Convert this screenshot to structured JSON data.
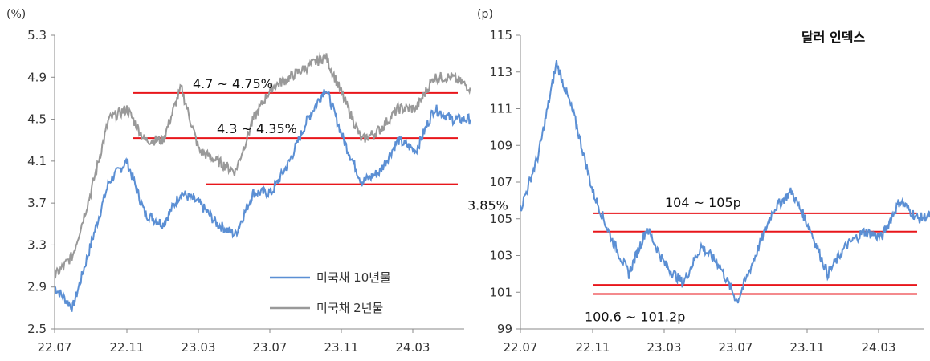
{
  "chart_data": [
    {
      "type": "line",
      "title": "",
      "unit_label": "(%)",
      "xlabel": "",
      "ylabel": "",
      "ylim": [
        2.5,
        5.3
      ],
      "yticks": [
        "5.3",
        "4.9",
        "4.5",
        "4.1",
        "3.7",
        "3.3",
        "2.9",
        "2.5"
      ],
      "xticks": [
        "22.07",
        "22.11",
        "23.03",
        "23.07",
        "23.11",
        "24.03"
      ],
      "grid": false,
      "legend_position": "bottom-right",
      "colors": {
        "us10y": "#5b8fd4",
        "us2y": "#999999",
        "ref": "#e8161b"
      },
      "series": [
        {
          "name": "미국채 10년물",
          "key": "us10y",
          "x": [
            "22.07",
            "22.08",
            "22.09",
            "22.10",
            "22.11",
            "22.12",
            "23.01",
            "23.02",
            "23.03",
            "23.04",
            "23.05",
            "23.06",
            "23.07",
            "23.08",
            "23.09",
            "23.10",
            "23.11",
            "23.12",
            "24.01",
            "24.02",
            "24.03",
            "24.04",
            "24.05",
            "24.06"
          ],
          "values": [
            2.9,
            2.7,
            3.3,
            3.9,
            4.1,
            3.6,
            3.5,
            3.8,
            3.7,
            3.5,
            3.4,
            3.8,
            3.8,
            4.1,
            4.5,
            4.8,
            4.3,
            3.9,
            4.0,
            4.3,
            4.2,
            4.6,
            4.5,
            4.5
          ]
        },
        {
          "name": "미국채 2년물",
          "key": "us2y",
          "x": [
            "22.07",
            "22.08",
            "22.09",
            "22.10",
            "22.11",
            "22.12",
            "23.01",
            "23.02",
            "23.03",
            "23.04",
            "23.05",
            "23.06",
            "23.07",
            "23.08",
            "23.09",
            "23.10",
            "23.11",
            "23.12",
            "24.01",
            "24.02",
            "24.03",
            "24.04",
            "24.05",
            "24.06"
          ],
          "values": [
            3.0,
            3.2,
            3.8,
            4.5,
            4.6,
            4.3,
            4.3,
            4.8,
            4.2,
            4.1,
            4.0,
            4.5,
            4.8,
            4.9,
            5.0,
            5.1,
            4.7,
            4.3,
            4.4,
            4.6,
            4.6,
            4.9,
            4.9,
            4.8
          ]
        }
      ],
      "reference_lines": [
        {
          "value": 4.75,
          "from": "22.11",
          "label": "4.7 ~ 4.75%"
        },
        {
          "value": 4.32,
          "from": "22.11",
          "label": "4.3 ~ 4.35%"
        },
        {
          "value": 3.88,
          "from": "23.03",
          "label": "3.85%"
        }
      ]
    },
    {
      "type": "line",
      "title": "달러 인덱스",
      "unit_label": "(p)",
      "xlabel": "",
      "ylabel": "",
      "ylim": [
        99,
        115
      ],
      "yticks": [
        "115",
        "113",
        "111",
        "109",
        "107",
        "105",
        "103",
        "101",
        "99"
      ],
      "xticks": [
        "22.07",
        "22.11",
        "23.03",
        "23.07",
        "23.11",
        "24.03"
      ],
      "grid": false,
      "colors": {
        "dxy": "#5b8fd4",
        "ref": "#e8161b"
      },
      "series": [
        {
          "key": "dxy",
          "x": [
            "22.07",
            "22.08",
            "22.09",
            "22.10",
            "22.11",
            "22.12",
            "23.01",
            "23.02",
            "23.03",
            "23.04",
            "23.05",
            "23.06",
            "23.07",
            "23.08",
            "23.09",
            "23.10",
            "23.11",
            "23.12",
            "24.01",
            "24.02",
            "24.03",
            "24.04",
            "24.05",
            "24.06"
          ],
          "values": [
            105.5,
            108.5,
            113.5,
            110.5,
            106.5,
            104.0,
            102.0,
            104.5,
            102.5,
            101.5,
            103.5,
            102.5,
            100.5,
            103.0,
            105.5,
            106.5,
            104.5,
            102.0,
            103.5,
            104.3,
            104.0,
            106.0,
            105.0,
            105.3
          ]
        }
      ],
      "reference_lines": [
        {
          "value": 105.3,
          "from": "22.11",
          "label": "104 ~ 105p"
        },
        {
          "value": 104.3,
          "from": "22.11"
        },
        {
          "value": 101.4,
          "from": "22.11"
        },
        {
          "value": 100.9,
          "from": "22.11",
          "label": "100.6 ~ 101.2p"
        }
      ]
    }
  ]
}
